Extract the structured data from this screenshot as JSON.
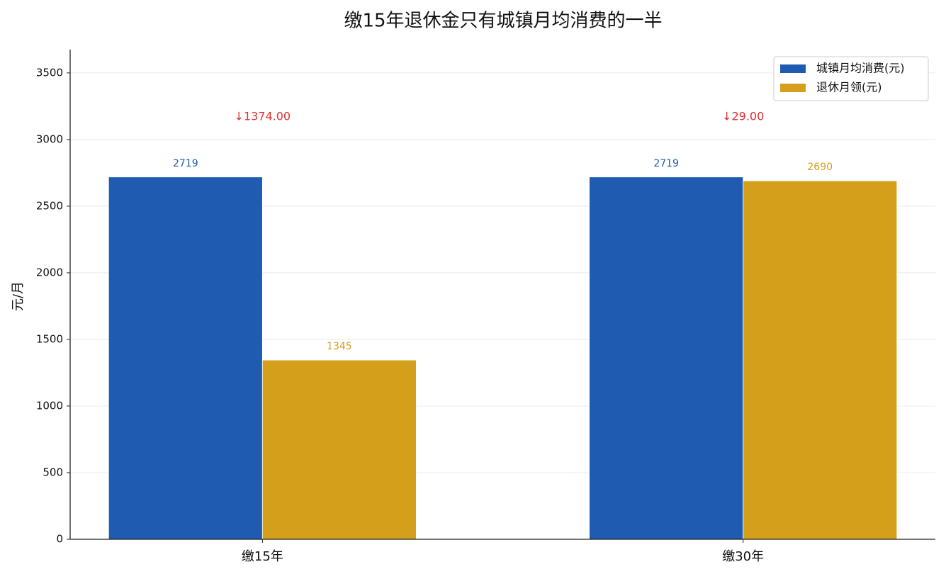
{
  "chart_data": {
    "type": "bar",
    "title": "缴15年退休金只有城镇月均消费的一半",
    "y_label": "元/月",
    "categories": [
      "缴15年",
      "缴30年"
    ],
    "series": [
      {
        "name": "城镇月均消费(元)",
        "color": "#1f5bb0",
        "values": [
          2719,
          2719
        ]
      },
      {
        "name": "退休月领(元)",
        "color": "#d4a01b",
        "values": [
          1345,
          2690
        ]
      }
    ],
    "annotations": [
      "↓1374.00",
      "↓29.00"
    ],
    "annotation_color": "#e03030",
    "ylim": [
      0,
      3675
    ],
    "yticks": [
      0,
      500,
      1000,
      1500,
      2000,
      2500,
      3000,
      3500
    ],
    "grid": true,
    "legend": "upper right"
  }
}
